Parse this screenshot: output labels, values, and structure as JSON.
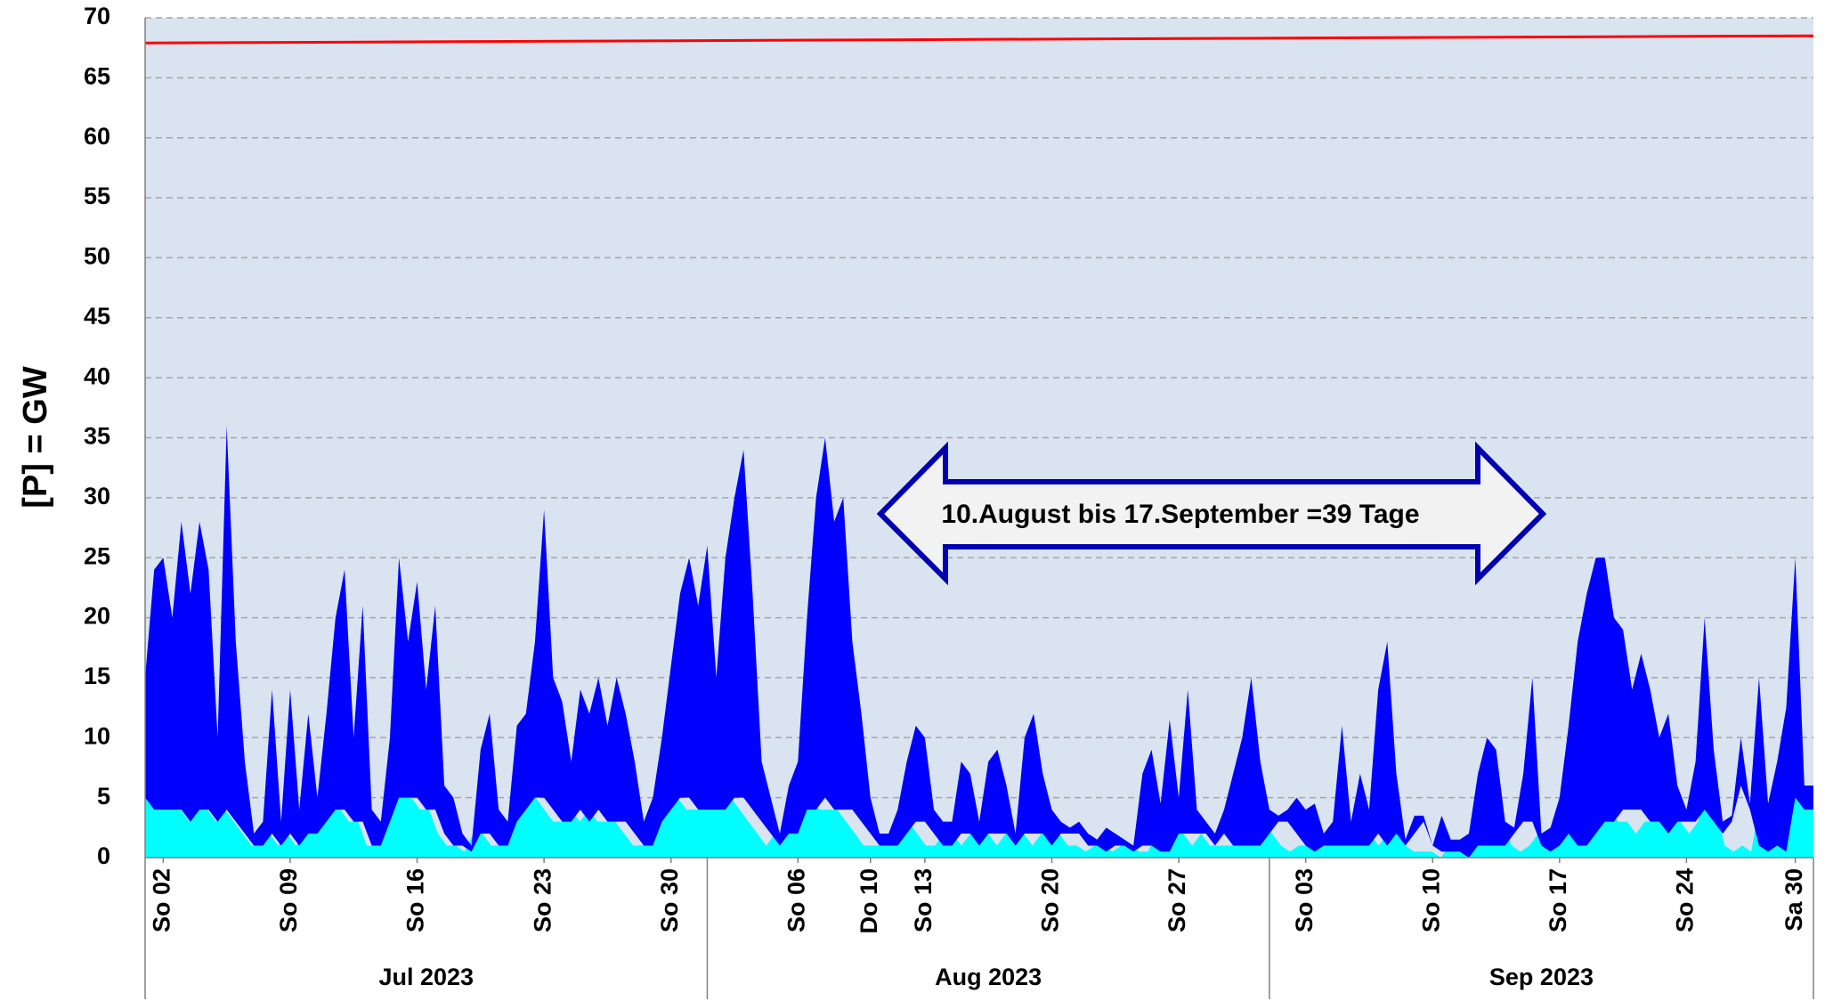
{
  "chart_data": {
    "type": "area",
    "stacked": true,
    "ylabel": "[P]  = GW",
    "annotation": "10.August bis 17.September =39 Tage",
    "xlim": [
      0,
      92
    ],
    "ylim": [
      0,
      70
    ],
    "yticks": [
      0,
      5,
      10,
      15,
      20,
      25,
      30,
      35,
      40,
      45,
      50,
      55,
      60,
      65,
      70
    ],
    "grid": true,
    "xticks": [
      {
        "value": 1,
        "label": "So 02"
      },
      {
        "value": 8,
        "label": "So 09"
      },
      {
        "value": 15,
        "label": "So 16"
      },
      {
        "value": 22,
        "label": "So 23"
      },
      {
        "value": 29,
        "label": "So 30"
      },
      {
        "value": 36,
        "label": "So 06"
      },
      {
        "value": 40,
        "label": "Do 10"
      },
      {
        "value": 43,
        "label": "So 13"
      },
      {
        "value": 50,
        "label": "So 20"
      },
      {
        "value": 57,
        "label": "So 27"
      },
      {
        "value": 64,
        "label": "So 03"
      },
      {
        "value": 71,
        "label": "So 10"
      },
      {
        "value": 78,
        "label": "So 17"
      },
      {
        "value": 85,
        "label": "So 24"
      },
      {
        "value": 91,
        "label": "Sa 30"
      }
    ],
    "xgroups": [
      {
        "label": "Jul 2023",
        "start": 0,
        "end": 31
      },
      {
        "label": "Aug 2023",
        "start": 31,
        "end": 62
      },
      {
        "label": "Sep 2023",
        "start": 62,
        "end": 92
      }
    ],
    "series": [
      {
        "type": "area",
        "color": "#00ffff",
        "values": [
          5,
          4,
          4,
          4,
          4,
          3,
          4,
          4,
          3,
          4,
          3,
          2,
          1,
          1,
          2,
          1,
          2,
          1,
          2,
          2,
          3,
          4,
          4,
          3,
          3,
          1,
          1,
          3,
          5,
          5,
          5,
          4,
          4,
          2,
          1,
          1,
          0.5,
          2,
          2,
          1,
          1,
          3,
          4,
          5,
          5,
          4,
          3,
          3,
          4,
          3,
          4,
          3,
          3,
          3,
          2,
          1,
          1,
          3,
          4,
          5,
          5,
          4,
          4,
          4,
          4,
          5,
          5,
          4,
          3,
          2,
          1,
          2,
          2,
          4,
          4,
          5,
          4,
          4,
          4,
          3,
          2,
          1,
          1,
          1,
          2,
          3,
          3,
          2,
          1,
          1,
          2,
          2,
          1,
          2,
          2,
          2,
          1,
          2,
          2,
          2,
          1,
          2,
          2,
          2,
          1,
          1,
          0.5,
          1,
          1,
          0.5,
          1,
          1,
          0.5,
          0.5,
          2,
          2,
          2,
          2,
          1,
          2,
          1,
          1,
          1,
          1,
          2,
          3,
          3,
          2,
          1,
          0.5,
          1,
          1,
          1,
          1,
          1,
          1,
          2,
          1,
          2,
          1,
          2,
          3,
          1,
          0.5,
          0.5,
          0.5,
          0,
          1,
          1,
          1,
          1,
          2,
          3,
          3,
          1,
          0.5,
          1,
          2,
          1,
          1,
          2,
          3,
          3,
          4,
          4,
          4,
          3,
          3,
          2,
          3,
          3,
          3,
          4,
          3,
          2,
          3,
          6,
          4,
          1,
          0.5,
          1,
          0.5,
          5,
          4,
          5,
          6,
          6,
          4
        ]
      },
      {
        "type": "area",
        "color": "#0000ff",
        "values": [
          10,
          20,
          21,
          16,
          24,
          19,
          24,
          20,
          7,
          32,
          15,
          6,
          1,
          2,
          12,
          2,
          12,
          3,
          10,
          3,
          9,
          16,
          20,
          7,
          18,
          3,
          2,
          7,
          20,
          13,
          18,
          10,
          17,
          4,
          4,
          1,
          0.5,
          7,
          10,
          3,
          2,
          8,
          8,
          13,
          24,
          11,
          10,
          5,
          10,
          9,
          11,
          8,
          12,
          9,
          6,
          2,
          4,
          7,
          12,
          17,
          20,
          17,
          22,
          11,
          21,
          25,
          29,
          18,
          5,
          3,
          1,
          4,
          6,
          16,
          26,
          30,
          24,
          26,
          14,
          9,
          3,
          1,
          1,
          3,
          6,
          8,
          7,
          2,
          2,
          2,
          6,
          5,
          2,
          6,
          7,
          4,
          1,
          8,
          10,
          5,
          3,
          1,
          0.5,
          1,
          1,
          0.5,
          2,
          1,
          0.5,
          0.5,
          6,
          8,
          4,
          11,
          3,
          12,
          2,
          1,
          1,
          2,
          6,
          9,
          14,
          7,
          2,
          0.5,
          1,
          3,
          3,
          4,
          1,
          2,
          10,
          2,
          6,
          3,
          12,
          17,
          5,
          0.5,
          1.5,
          0.5,
          0,
          3,
          1,
          1,
          2,
          6,
          9,
          8,
          2,
          0.5,
          4,
          12,
          1,
          2,
          4,
          9,
          17,
          21,
          23,
          22,
          17,
          15,
          10,
          13,
          11,
          7,
          10,
          3,
          1,
          5,
          16,
          6,
          1,
          0.5,
          4,
          0.5,
          14,
          4,
          7,
          12,
          20,
          2
        ]
      },
      {
        "type": "line",
        "color": "#ff0000",
        "x": [
          0,
          92
        ],
        "values": [
          67.9,
          68.5
        ]
      }
    ]
  }
}
